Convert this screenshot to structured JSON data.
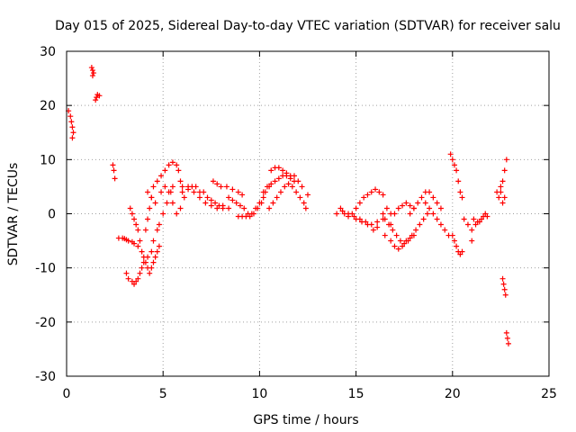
{
  "chart_data": {
    "type": "scatter",
    "title": "Day 015 of 2025, Sidereal Day-to-day VTEC variation (SDTVAR) for receiver salu",
    "xlabel": "GPS time / hours",
    "ylabel": "SDTVAR / TECUs",
    "xlim": [
      0,
      25
    ],
    "ylim": [
      -30,
      30
    ],
    "xticks": [
      0,
      5,
      10,
      15,
      20,
      25
    ],
    "yticks": [
      -30,
      -20,
      -10,
      0,
      10,
      20,
      30
    ],
    "grid": true,
    "marker": "+",
    "color": "#ff0000",
    "series": [
      {
        "name": "SDTVAR",
        "points": [
          [
            0.1,
            19
          ],
          [
            0.2,
            18
          ],
          [
            0.25,
            17
          ],
          [
            0.3,
            16
          ],
          [
            0.35,
            15
          ],
          [
            0.3,
            14
          ],
          [
            1.3,
            27
          ],
          [
            1.35,
            26.5
          ],
          [
            1.4,
            26
          ],
          [
            1.35,
            25.5
          ],
          [
            1.5,
            21
          ],
          [
            1.55,
            21.5
          ],
          [
            1.6,
            22
          ],
          [
            1.7,
            21.8
          ],
          [
            2.4,
            9
          ],
          [
            2.45,
            8
          ],
          [
            2.5,
            6.5
          ],
          [
            2.7,
            -4.5
          ],
          [
            2.9,
            -4.5
          ],
          [
            3.0,
            -4.6
          ],
          [
            3.1,
            -4.8
          ],
          [
            3.2,
            -5
          ],
          [
            3.4,
            -5.2
          ],
          [
            3.5,
            -5.5
          ],
          [
            3.7,
            -6
          ],
          [
            3.1,
            -11
          ],
          [
            3.2,
            -12
          ],
          [
            3.4,
            -12.5
          ],
          [
            3.5,
            -13
          ],
          [
            3.6,
            -12.5
          ],
          [
            3.7,
            -12
          ],
          [
            3.8,
            -11
          ],
          [
            3.9,
            -10
          ],
          [
            4.0,
            -9
          ],
          [
            4.2,
            -8
          ],
          [
            4.4,
            -7
          ],
          [
            4.5,
            -5
          ],
          [
            4.7,
            -3
          ],
          [
            4.8,
            -2
          ],
          [
            5.0,
            0
          ],
          [
            5.2,
            2
          ],
          [
            5.4,
            4
          ],
          [
            5.5,
            5
          ],
          [
            3.3,
            1
          ],
          [
            3.4,
            0
          ],
          [
            3.5,
            -1
          ],
          [
            3.6,
            -2
          ],
          [
            3.7,
            -3
          ],
          [
            3.8,
            -5
          ],
          [
            3.9,
            -7
          ],
          [
            4.0,
            -8
          ],
          [
            4.1,
            -9
          ],
          [
            4.2,
            -10
          ],
          [
            4.3,
            -11
          ],
          [
            4.4,
            -10
          ],
          [
            4.5,
            -9
          ],
          [
            4.6,
            -8
          ],
          [
            4.7,
            -7
          ],
          [
            4.8,
            -6
          ],
          [
            4.1,
            -3
          ],
          [
            4.2,
            -1
          ],
          [
            4.3,
            1
          ],
          [
            4.4,
            3
          ],
          [
            4.5,
            5
          ],
          [
            4.7,
            6
          ],
          [
            4.9,
            7
          ],
          [
            5.1,
            8
          ],
          [
            5.3,
            9
          ],
          [
            5.5,
            9.5
          ],
          [
            5.7,
            9
          ],
          [
            5.8,
            8
          ],
          [
            5.9,
            6
          ],
          [
            6.0,
            5
          ],
          [
            4.2,
            4
          ],
          [
            4.4,
            3
          ],
          [
            4.6,
            2
          ],
          [
            4.9,
            4
          ],
          [
            5.1,
            5
          ],
          [
            5.3,
            4
          ],
          [
            5.5,
            2
          ],
          [
            5.7,
            0
          ],
          [
            5.9,
            1
          ],
          [
            6.1,
            3
          ],
          [
            6.3,
            5
          ],
          [
            6.5,
            5
          ],
          [
            6.7,
            5
          ],
          [
            6.9,
            4
          ],
          [
            7.1,
            4
          ],
          [
            7.3,
            3
          ],
          [
            7.5,
            2.5
          ],
          [
            7.7,
            2
          ],
          [
            7.9,
            1.5
          ],
          [
            8.1,
            1.5
          ],
          [
            6.0,
            4
          ],
          [
            6.3,
            4.5
          ],
          [
            6.6,
            4
          ],
          [
            6.9,
            3
          ],
          [
            7.2,
            2
          ],
          [
            7.5,
            1.5
          ],
          [
            7.8,
            1
          ],
          [
            8.1,
            1
          ],
          [
            8.4,
            1
          ],
          [
            7.6,
            6
          ],
          [
            7.8,
            5.5
          ],
          [
            8.0,
            5
          ],
          [
            8.3,
            5
          ],
          [
            8.6,
            4.5
          ],
          [
            8.9,
            4
          ],
          [
            9.1,
            3.5
          ],
          [
            8.4,
            3
          ],
          [
            8.6,
            2.5
          ],
          [
            8.8,
            2
          ],
          [
            9.0,
            1.5
          ],
          [
            9.2,
            1
          ],
          [
            9.4,
            0
          ],
          [
            9.6,
            0
          ],
          [
            9.8,
            1
          ],
          [
            10.0,
            2
          ],
          [
            10.2,
            3
          ],
          [
            8.9,
            -0.5
          ],
          [
            9.1,
            -0.5
          ],
          [
            9.3,
            -0.5
          ],
          [
            9.5,
            -0.5
          ],
          [
            9.7,
            0
          ],
          [
            9.9,
            1
          ],
          [
            10.1,
            2
          ],
          [
            10.3,
            4
          ],
          [
            10.5,
            5
          ],
          [
            10.2,
            4
          ],
          [
            10.4,
            5
          ],
          [
            10.6,
            5.5
          ],
          [
            10.8,
            6
          ],
          [
            11.0,
            6.5
          ],
          [
            11.2,
            7
          ],
          [
            11.4,
            7
          ],
          [
            11.6,
            6.5
          ],
          [
            11.8,
            6
          ],
          [
            10.6,
            8
          ],
          [
            10.8,
            8.5
          ],
          [
            11.0,
            8.5
          ],
          [
            11.2,
            8
          ],
          [
            11.4,
            7.5
          ],
          [
            11.6,
            7
          ],
          [
            11.8,
            7
          ],
          [
            12.0,
            6
          ],
          [
            12.2,
            5
          ],
          [
            10.5,
            1
          ],
          [
            10.7,
            2
          ],
          [
            10.9,
            3
          ],
          [
            11.1,
            4
          ],
          [
            11.3,
            5
          ],
          [
            11.5,
            5.5
          ],
          [
            11.7,
            5
          ],
          [
            11.9,
            4
          ],
          [
            12.1,
            3
          ],
          [
            12.3,
            2
          ],
          [
            12.4,
            1
          ],
          [
            12.5,
            3.5
          ],
          [
            14.0,
            0
          ],
          [
            14.2,
            1
          ],
          [
            14.4,
            0
          ],
          [
            14.6,
            -0.5
          ],
          [
            14.8,
            0
          ],
          [
            15.0,
            1
          ],
          [
            15.2,
            2
          ],
          [
            15.4,
            3
          ],
          [
            15.6,
            3.5
          ],
          [
            15.8,
            4
          ],
          [
            16.0,
            4.5
          ],
          [
            16.2,
            4
          ],
          [
            16.4,
            3.5
          ],
          [
            14.3,
            0.5
          ],
          [
            14.6,
            0
          ],
          [
            14.9,
            -0.5
          ],
          [
            15.2,
            -1
          ],
          [
            15.5,
            -1.5
          ],
          [
            15.8,
            -2
          ],
          [
            16.1,
            -1.5
          ],
          [
            16.4,
            -1
          ],
          [
            15.0,
            -1
          ],
          [
            15.3,
            -1.5
          ],
          [
            15.6,
            -2
          ],
          [
            15.9,
            -3
          ],
          [
            16.1,
            -2.5
          ],
          [
            16.4,
            0
          ],
          [
            16.6,
            1
          ],
          [
            16.8,
            0
          ],
          [
            16.5,
            -1
          ],
          [
            16.7,
            -2
          ],
          [
            16.9,
            -3
          ],
          [
            17.1,
            -4
          ],
          [
            17.3,
            -5
          ],
          [
            17.5,
            -5.5
          ],
          [
            17.7,
            -5
          ],
          [
            17.9,
            -4
          ],
          [
            18.1,
            -3
          ],
          [
            18.3,
            -2
          ],
          [
            18.5,
            -1
          ],
          [
            18.7,
            0
          ],
          [
            16.5,
            -4
          ],
          [
            16.8,
            -5
          ],
          [
            17.0,
            -6
          ],
          [
            17.2,
            -6.5
          ],
          [
            17.4,
            -6
          ],
          [
            17.6,
            -5
          ],
          [
            17.8,
            -4.5
          ],
          [
            18.0,
            -4
          ],
          [
            16.8,
            -2
          ],
          [
            17.0,
            0
          ],
          [
            17.2,
            1
          ],
          [
            17.4,
            1.5
          ],
          [
            17.6,
            2
          ],
          [
            17.8,
            1.5
          ],
          [
            18.0,
            1
          ],
          [
            17.8,
            0
          ],
          [
            18.0,
            1
          ],
          [
            18.2,
            2
          ],
          [
            18.4,
            3
          ],
          [
            18.6,
            4
          ],
          [
            18.8,
            4
          ],
          [
            19.0,
            3
          ],
          [
            19.2,
            2
          ],
          [
            19.4,
            1
          ],
          [
            18.6,
            2
          ],
          [
            18.8,
            1
          ],
          [
            19.0,
            0
          ],
          [
            19.2,
            -1
          ],
          [
            19.4,
            -2
          ],
          [
            19.6,
            -3
          ],
          [
            19.8,
            -4
          ],
          [
            19.9,
            11
          ],
          [
            20.0,
            10
          ],
          [
            20.1,
            9
          ],
          [
            20.2,
            8
          ],
          [
            20.3,
            6
          ],
          [
            20.4,
            4
          ],
          [
            20.5,
            3
          ],
          [
            20.0,
            -4
          ],
          [
            20.1,
            -5
          ],
          [
            20.2,
            -6
          ],
          [
            20.3,
            -7
          ],
          [
            20.4,
            -7.5
          ],
          [
            20.5,
            -7
          ],
          [
            20.6,
            -1
          ],
          [
            20.8,
            -2
          ],
          [
            21.0,
            -5
          ],
          [
            21.1,
            -1
          ],
          [
            21.3,
            -1.5
          ],
          [
            21.5,
            -1
          ],
          [
            21.6,
            -0.5
          ],
          [
            21.7,
            0
          ],
          [
            21.8,
            -0.5
          ],
          [
            21.0,
            -3
          ],
          [
            21.2,
            -2
          ],
          [
            21.4,
            -1.5
          ],
          [
            22.3,
            4
          ],
          [
            22.4,
            3
          ],
          [
            22.5,
            4
          ],
          [
            22.6,
            6
          ],
          [
            22.7,
            8
          ],
          [
            22.8,
            10
          ],
          [
            22.7,
            3
          ],
          [
            22.6,
            2
          ],
          [
            22.5,
            5
          ],
          [
            22.6,
            -12
          ],
          [
            22.65,
            -13
          ],
          [
            22.7,
            -14
          ],
          [
            22.75,
            -15
          ],
          [
            22.8,
            -22
          ],
          [
            22.85,
            -23
          ],
          [
            22.9,
            -24
          ]
        ]
      }
    ]
  }
}
